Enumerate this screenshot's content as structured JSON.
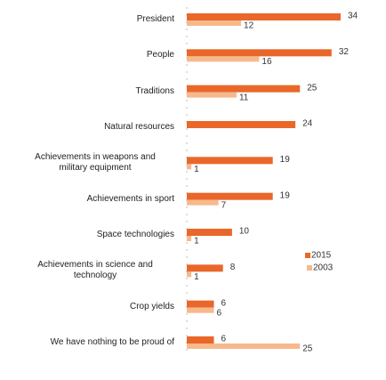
{
  "chart_data": {
    "type": "bar",
    "orientation": "horizontal",
    "categories": [
      "President",
      "People",
      "Traditions",
      "Natural resources",
      "Achievements in weapons and military equipment",
      "Achievements in sport",
      "Space technologies",
      "Achievements in science and technology",
      "Crop yields",
      "We have nothing to be proud of"
    ],
    "series": [
      {
        "name": "2015",
        "color": "#e9672a",
        "values": [
          34,
          32,
          25,
          24,
          19,
          19,
          10,
          8,
          6,
          6
        ]
      },
      {
        "name": "2003",
        "color": "#f7b98c",
        "values": [
          12,
          16,
          11,
          null,
          1,
          7,
          1,
          1,
          6,
          25
        ]
      }
    ]
  }
}
